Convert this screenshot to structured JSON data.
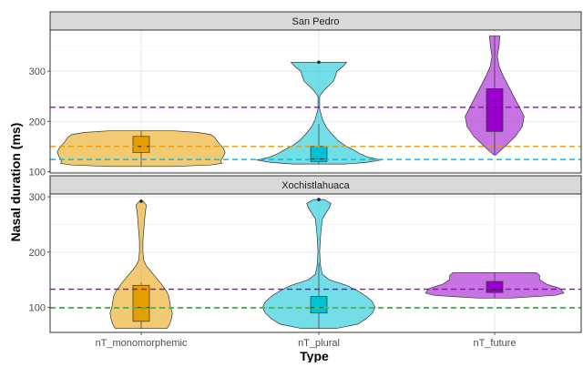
{
  "chart_data": {
    "type": "violin",
    "xlabel": "Type",
    "ylabel": "Nasal duration (ms)",
    "categories": [
      "nT_monomorphemic",
      "nT_plural",
      "nT_future"
    ],
    "colors": [
      "#e69f00",
      "#00c2d6",
      "#9900cc"
    ],
    "panels": [
      {
        "strip": "San Pedro",
        "ylim": [
          97,
          382
        ],
        "yticks": [
          100,
          200,
          300
        ],
        "hlines": [
          {
            "y": 228,
            "color": "#9900cc"
          },
          {
            "y": 150,
            "color": "#e69f00"
          },
          {
            "y": 124,
            "color": "#00c2d6"
          }
        ],
        "groups": [
          {
            "violin": [
              [
                110,
                36
              ],
              [
                113,
                80
              ],
              [
                116,
                93
              ],
              [
                122,
                92
              ],
              [
                130,
                95
              ],
              [
                138,
                97
              ],
              [
                146,
                95
              ],
              [
                152,
                92
              ],
              [
                160,
                88
              ],
              [
                168,
                85
              ],
              [
                174,
                80
              ],
              [
                178,
                65
              ],
              [
                181,
                38
              ]
            ],
            "box": {
              "q1": 138,
              "median": 150,
              "q3": 170,
              "whisker_low": 110,
              "whisker_high": 180
            },
            "outliers": []
          },
          {
            "violin": [
              [
                115,
                30
              ],
              [
                118,
                55
              ],
              [
                123,
                72
              ],
              [
                128,
                58
              ],
              [
                135,
                48
              ],
              [
                143,
                40
              ],
              [
                152,
                30
              ],
              [
                162,
                22
              ],
              [
                175,
                15
              ],
              [
                190,
                8
              ],
              [
                205,
                4
              ],
              [
                225,
                1
              ],
              [
                250,
                1
              ],
              [
                262,
                6
              ],
              [
                272,
                12
              ],
              [
                280,
                17
              ],
              [
                290,
                19
              ],
              [
                300,
                21
              ],
              [
                310,
                28
              ],
              [
                318,
                32
              ]
            ],
            "box": {
              "q1": 120,
              "median": 125,
              "q3": 150,
              "whisker_low": 115,
              "whisker_high": 195
            },
            "outliers": [
              318
            ]
          },
          {
            "violin": [
              [
                133,
                1
              ],
              [
                150,
                12
              ],
              [
                170,
                24
              ],
              [
                190,
                32
              ],
              [
                210,
                34
              ],
              [
                230,
                28
              ],
              [
                250,
                22
              ],
              [
                270,
                16
              ],
              [
                290,
                10
              ],
              [
                310,
                5
              ],
              [
                330,
                3
              ],
              [
                350,
                5
              ],
              [
                370,
                6
              ]
            ],
            "box": {
              "q1": 180,
              "median": 228,
              "q3": 265,
              "whisker_low": 133,
              "whisker_high": 370
            },
            "outliers": []
          }
        ]
      },
      {
        "strip": "Xochistlahuaca",
        "ylim": [
          55,
          305
        ],
        "yticks": [
          100,
          200,
          300
        ],
        "hlines": [
          {
            "y": 133,
            "color": "#9900cc"
          },
          {
            "y": 100,
            "color": "#e69f00"
          },
          {
            "y": 99,
            "color": "#4caf50"
          }
        ],
        "groups": [
          {
            "violin": [
              [
                62,
                30
              ],
              [
                70,
                33
              ],
              [
                80,
                35
              ],
              [
                90,
                36
              ],
              [
                100,
                34
              ],
              [
                110,
                33
              ],
              [
                120,
                32
              ],
              [
                130,
                29
              ],
              [
                145,
                22
              ],
              [
                160,
                14
              ],
              [
                175,
                6
              ],
              [
                185,
                3
              ],
              [
                200,
                2
              ],
              [
                220,
                2
              ],
              [
                240,
                3
              ],
              [
                260,
                4
              ],
              [
                275,
                5
              ],
              [
                285,
                6
              ],
              [
                292,
                2
              ]
            ],
            "box": {
              "q1": 75,
              "median": 100,
              "q3": 140,
              "whisker_low": 62,
              "whisker_high": 145
            },
            "outliers": [
              292
            ]
          },
          {
            "violin": [
              [
                62,
                20
              ],
              [
                70,
                45
              ],
              [
                80,
                55
              ],
              [
                90,
                62
              ],
              [
                100,
                65
              ],
              [
                110,
                62
              ],
              [
                120,
                55
              ],
              [
                130,
                45
              ],
              [
                140,
                32
              ],
              [
                150,
                12
              ],
              [
                160,
                4
              ],
              [
                175,
                2
              ],
              [
                200,
                1
              ],
              [
                230,
                2
              ],
              [
                260,
                4
              ],
              [
                280,
                12
              ],
              [
                288,
                14
              ],
              [
                295,
                6
              ]
            ],
            "box": {
              "q1": 90,
              "median": 100,
              "q3": 120,
              "whisker_low": 62,
              "whisker_high": 180
            },
            "outliers": [
              295
            ]
          },
          {
            "violin": [
              [
                117,
                20
              ],
              [
                122,
                70
              ],
              [
                126,
                80
              ],
              [
                130,
                78
              ],
              [
                135,
                75
              ],
              [
                142,
                60
              ],
              [
                150,
                52
              ],
              [
                158,
                52
              ],
              [
                163,
                48
              ]
            ],
            "box": {
              "q1": 127,
              "median": 132,
              "q3": 147,
              "whisker_low": 117,
              "whisker_high": 163
            },
            "outliers": []
          }
        ]
      }
    ]
  }
}
